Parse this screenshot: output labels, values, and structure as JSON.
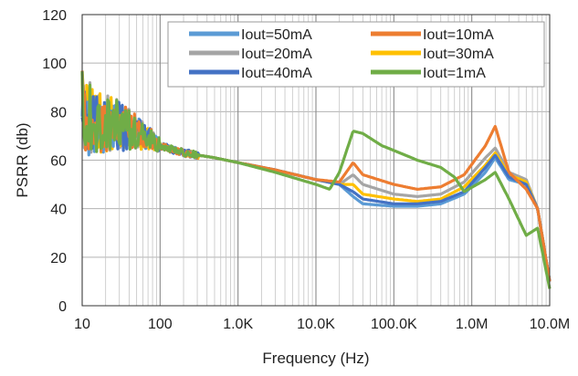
{
  "chart_data": {
    "type": "line",
    "title": "",
    "xlabel": "Frequency (Hz)",
    "ylabel": "PSRR (db)",
    "x_scale": "log",
    "xlim": [
      10,
      10000000
    ],
    "ylim": [
      0,
      120
    ],
    "grid": true,
    "legend_position": "top-right",
    "x_ticks": [
      {
        "value": 10,
        "label": "10"
      },
      {
        "value": 100,
        "label": "100"
      },
      {
        "value": 1000,
        "label": "1.0K"
      },
      {
        "value": 10000,
        "label": "10.0K"
      },
      {
        "value": 100000,
        "label": "100.0K"
      },
      {
        "value": 1000000,
        "label": "1.0M"
      },
      {
        "value": 10000000,
        "label": "10.0M"
      }
    ],
    "y_ticks": [
      {
        "value": 0,
        "label": "0"
      },
      {
        "value": 20,
        "label": "20"
      },
      {
        "value": 40,
        "label": "40"
      },
      {
        "value": 60,
        "label": "60"
      },
      {
        "value": 80,
        "label": "80"
      },
      {
        "value": 100,
        "label": "100"
      },
      {
        "value": 120,
        "label": "120"
      }
    ],
    "series": [
      {
        "name": "Iout=50mA",
        "color": "#5b9bd5",
        "points": [
          [
            10,
            78
          ],
          [
            20,
            75
          ],
          [
            50,
            72
          ],
          [
            100,
            66
          ],
          [
            200,
            63
          ],
          [
            500,
            61
          ],
          [
            1000,
            59
          ],
          [
            3000,
            56
          ],
          [
            10000,
            52
          ],
          [
            20000,
            50
          ],
          [
            30000,
            45
          ],
          [
            40000,
            42
          ],
          [
            100000,
            41
          ],
          [
            200000,
            41
          ],
          [
            400000,
            42
          ],
          [
            800000,
            46
          ],
          [
            1500000,
            55
          ],
          [
            2000000,
            61
          ],
          [
            3000000,
            52
          ],
          [
            5000000,
            50
          ],
          [
            7000000,
            40
          ],
          [
            10000000,
            10
          ]
        ]
      },
      {
        "name": "Iout=10mA",
        "color": "#ed7d31",
        "points": [
          [
            10,
            80
          ],
          [
            20,
            76
          ],
          [
            50,
            72
          ],
          [
            100,
            66
          ],
          [
            200,
            63
          ],
          [
            500,
            61
          ],
          [
            1000,
            59
          ],
          [
            3000,
            56
          ],
          [
            10000,
            52
          ],
          [
            20000,
            51
          ],
          [
            30000,
            59
          ],
          [
            40000,
            54
          ],
          [
            100000,
            50
          ],
          [
            200000,
            48
          ],
          [
            400000,
            49
          ],
          [
            800000,
            54
          ],
          [
            1500000,
            66
          ],
          [
            2000000,
            74
          ],
          [
            3000000,
            55
          ],
          [
            5000000,
            48
          ],
          [
            7000000,
            40
          ],
          [
            10000000,
            10
          ]
        ]
      },
      {
        "name": "Iout=20mA",
        "color": "#a5a5a5",
        "points": [
          [
            10,
            79
          ],
          [
            20,
            76
          ],
          [
            50,
            72
          ],
          [
            100,
            66
          ],
          [
            200,
            63
          ],
          [
            500,
            61
          ],
          [
            1000,
            59
          ],
          [
            3000,
            56
          ],
          [
            10000,
            52
          ],
          [
            20000,
            50
          ],
          [
            30000,
            54
          ],
          [
            40000,
            50
          ],
          [
            100000,
            46
          ],
          [
            200000,
            45
          ],
          [
            400000,
            46
          ],
          [
            800000,
            51
          ],
          [
            1500000,
            61
          ],
          [
            2000000,
            65
          ],
          [
            3000000,
            55
          ],
          [
            5000000,
            52
          ],
          [
            7000000,
            40
          ],
          [
            10000000,
            10
          ]
        ]
      },
      {
        "name": "Iout=30mA",
        "color": "#ffc000",
        "points": [
          [
            10,
            79
          ],
          [
            20,
            75
          ],
          [
            50,
            72
          ],
          [
            100,
            66
          ],
          [
            200,
            63
          ],
          [
            500,
            61
          ],
          [
            1000,
            59
          ],
          [
            3000,
            56
          ],
          [
            10000,
            52
          ],
          [
            20000,
            50
          ],
          [
            30000,
            50
          ],
          [
            40000,
            46
          ],
          [
            100000,
            44
          ],
          [
            200000,
            43
          ],
          [
            400000,
            44
          ],
          [
            800000,
            49
          ],
          [
            1500000,
            58
          ],
          [
            2000000,
            63
          ],
          [
            3000000,
            54
          ],
          [
            5000000,
            51
          ],
          [
            7000000,
            40
          ],
          [
            10000000,
            10
          ]
        ]
      },
      {
        "name": "Iout=40mA",
        "color": "#4472c4",
        "points": [
          [
            10,
            78
          ],
          [
            20,
            75
          ],
          [
            50,
            72
          ],
          [
            100,
            66
          ],
          [
            200,
            63
          ],
          [
            500,
            61
          ],
          [
            1000,
            59
          ],
          [
            3000,
            56
          ],
          [
            10000,
            52
          ],
          [
            20000,
            50
          ],
          [
            30000,
            47
          ],
          [
            40000,
            44
          ],
          [
            100000,
            42
          ],
          [
            200000,
            42
          ],
          [
            400000,
            43
          ],
          [
            800000,
            47
          ],
          [
            1500000,
            57
          ],
          [
            2000000,
            62
          ],
          [
            3000000,
            53
          ],
          [
            5000000,
            50
          ],
          [
            7000000,
            40
          ],
          [
            10000000,
            10
          ]
        ]
      },
      {
        "name": "Iout=1mA",
        "color": "#70ad47",
        "points": [
          [
            10,
            80
          ],
          [
            20,
            76
          ],
          [
            50,
            72
          ],
          [
            100,
            66
          ],
          [
            200,
            63
          ],
          [
            500,
            61
          ],
          [
            1000,
            59
          ],
          [
            3000,
            55
          ],
          [
            10000,
            50
          ],
          [
            15000,
            48
          ],
          [
            20000,
            55
          ],
          [
            30000,
            72
          ],
          [
            40000,
            71
          ],
          [
            70000,
            66
          ],
          [
            100000,
            64
          ],
          [
            200000,
            60
          ],
          [
            400000,
            57
          ],
          [
            600000,
            53
          ],
          [
            800000,
            47
          ],
          [
            1500000,
            52
          ],
          [
            2000000,
            55
          ],
          [
            3000000,
            44
          ],
          [
            5000000,
            29
          ],
          [
            7000000,
            32
          ],
          [
            10000000,
            7
          ]
        ]
      }
    ],
    "noisy_region": [
      10,
      100
    ]
  }
}
